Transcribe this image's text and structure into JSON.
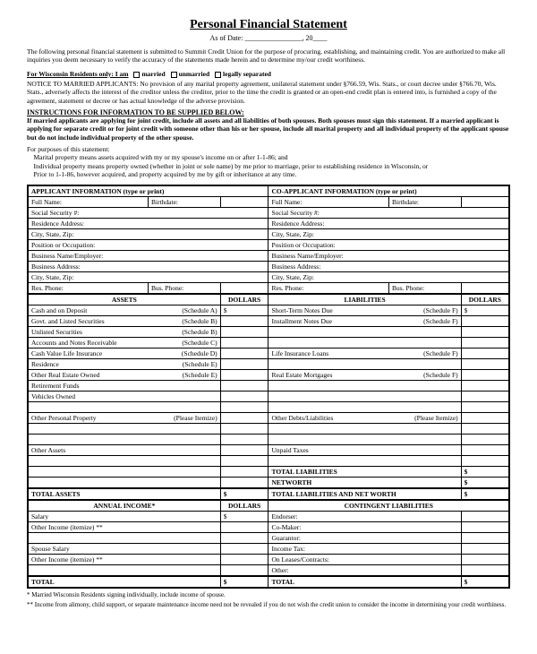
{
  "title": "Personal Financial Statement",
  "asof_prefix": "As of Date: ",
  "asof_blank1": "________________",
  "asof_mid": ", 20",
  "asof_blank2": "____",
  "intro": "The following personal financial statement is submitted to Summit Credit Union for the purpose of procuring, establishing, and maintaining credit. You are authorized to make all inquiries you deem necessary to verify the accuracy of the statements made herein and to determine my/our credit worthiness.",
  "wi_line_lead": "For Wisconsin Residents only:  I am",
  "wi_opts": [
    "married",
    "unmarried",
    "legally separated"
  ],
  "notice": "NOTICE TO MARRIED APPLICANTS: No provision of any marital property agreement, unilateral statement under §766.59, Wis. Stats., or court decree under §766.70, Wis. Stats., adversely affects the interest of the creditor unless the creditor, prior to the time the credit is granted or an open-end credit plan is entered into, is furnished a copy of the agreement, statement or decree or has actual knowledge of the adverse provision.",
  "instr_head": "INSTRUCTIONS FOR INFORMATION TO BE SUPPLIED BELOW:",
  "instr_body": "If married applicants are applying for joint credit, include all assets and all liabilities of both spouses. Both spouses must sign this statement.  If a married applicant is applying for separate credit or for joint credit with someone other than his or her spouse, include all marital property and all individual property of the applicant spouse but do not include individual property of the other spouse.",
  "defs_lead": "For purposes of this statement:",
  "defs1": "Marital property means assets acquired with my or my spouse's income on or after 1-1-86; and",
  "defs2": "Individual property means property owned (whether in joint or sole name) by me prior to marriage, prior to establishing residence in Wisconsin, or",
  "defs3": "Prior to 1-1-86, however acquired, and property acquired by me by gift or inheritance at any time.",
  "hdr_applicant": "APPLICANT INFORMATION   (type or print)",
  "hdr_coapplicant": "CO-APPLICANT INFORMATION   (type or print)",
  "personal_rows": [
    {
      "a": "Full Name:",
      "a2": "Birthdate:",
      "b": "Full Name:",
      "b2": "Birthdate:"
    },
    {
      "a": "Social Security #:",
      "b": "Social Security #:"
    },
    {
      "a": "Residence Address:",
      "b": "Residence Address:"
    },
    {
      "a": "City, State, Zip:",
      "b": "City, State, Zip:"
    },
    {
      "a": "Position or Occupation:",
      "b": "Position or Occupation:"
    },
    {
      "a": "Business Name/Employer:",
      "b": "Business Name/Employer:"
    },
    {
      "a": "Business Address:",
      "b": "Business Address:"
    },
    {
      "a": "City, State, Zip:",
      "b": "City, State, Zip:"
    },
    {
      "a": "Res. Phone:",
      "a2": "Bus. Phone:",
      "b": "Res. Phone:",
      "b2": "Bus. Phone:"
    }
  ],
  "hdr_assets": "ASSETS",
  "hdr_dollars": "DOLLARS",
  "hdr_liab": "LIABILITIES",
  "asset_rows": [
    {
      "a": "Cash and on Deposit",
      "as": "(Schedule A)",
      "ad": "$",
      "l": "Short-Term Notes Due",
      "ls": "(Schedule F)",
      "ld": "$"
    },
    {
      "a": "Govt. and Listed Securities",
      "as": "(Schedule B)",
      "l": "Installment Notes Due",
      "ls": "(Schedule F)"
    },
    {
      "a": "Unlisted Securities",
      "as": "(Schedule B)"
    },
    {
      "a": "Accounts and Notes Receivable",
      "as": "(Schedule C)"
    },
    {
      "a": "Cash Value Life Insurance",
      "as": "(Schedule D)",
      "l": "Life Insurance Loans",
      "ls": "(Schedule F)"
    },
    {
      "a": "Residence",
      "as": "(Schedule E)"
    },
    {
      "a": "Other Real Estate Owned",
      "as": "(Schedule E)",
      "l": "Real Estate Mortgages",
      "ls": "(Schedule F)"
    },
    {
      "a": "Retirement Funds"
    },
    {
      "a": "Vehicles Owned"
    },
    {
      "a": ""
    },
    {
      "a": "Other Personal Property",
      "as": "(Please Itemize)",
      "l": "Other Debts/Liabilities",
      "ls": "(Please Itemize)"
    },
    {
      "a": ""
    },
    {
      "a": ""
    },
    {
      "a": "Other Assets",
      "l": "Unpaid Taxes"
    },
    {
      "a": ""
    },
    {
      "a": "",
      "l": "TOTAL LIABILITIES",
      "ld": "$",
      "lb": true
    },
    {
      "a": "",
      "l": "NETWORTH",
      "ld": "$",
      "lb": true
    }
  ],
  "total_assets": "TOTAL ASSETS",
  "total_liab": "TOTAL LIABILITIES AND NET WORTH",
  "ds": "$",
  "hdr_income": "ANNUAL INCOME*",
  "hdr_contingent": "CONTINGENT LIABILITIES",
  "income_rows": [
    {
      "a": "Salary",
      "ad": "$",
      "l": "Endorser:"
    },
    {
      "a": "Other Income (itemize) **",
      "l": "Co-Maker:"
    },
    {
      "a": "",
      "l": "Guarantor:"
    },
    {
      "a": "Spouse Salary",
      "l": "Income Tax:"
    },
    {
      "a": "Other Income (itemize) **",
      "l": "On Leases/Contracts:"
    },
    {
      "a": "",
      "l": "Other:"
    }
  ],
  "total": "TOTAL",
  "foot1": "*  Married Wisconsin Residents signing individually, include income of spouse.",
  "foot2": "** Income from alimony, child support, or separate maintenance income need not be revealed if you do not wish the credit union to consider the income in determining your credit worthiness."
}
